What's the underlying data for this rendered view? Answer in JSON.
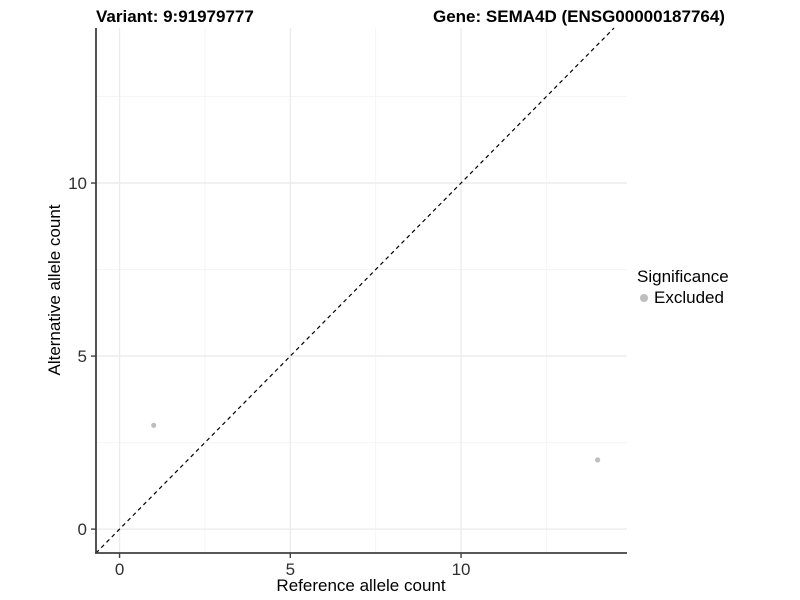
{
  "titles": {
    "variant": "Variant: 9:91979777",
    "gene": "Gene: SEMA4D (ENSG00000187764)"
  },
  "axes": {
    "x_title": "Reference allele count",
    "y_title": "Alternative allele count"
  },
  "legend": {
    "title": "Significance",
    "items": [
      {
        "label": "Excluded",
        "color": "#bebebe"
      }
    ]
  },
  "colors": {
    "point": "#bebebe",
    "grid_major": "#ebebeb",
    "grid_minor": "#f5f5f5",
    "axis_line": "#404040",
    "tick_text": "#303030",
    "identity_line": "#000000",
    "background": "#ffffff"
  },
  "chart_data": {
    "type": "scatter",
    "title": "Variant: 9:91979777 | Gene: SEMA4D (ENSG00000187764)",
    "xlabel": "Reference allele count",
    "ylabel": "Alternative allele count",
    "xlim": [
      -0.69,
      14.86
    ],
    "ylim": [
      -0.69,
      14.48
    ],
    "x_ticks": [
      0,
      5,
      10
    ],
    "y_ticks": [
      0,
      5,
      10
    ],
    "x_minor_ticks": [
      2.5,
      7.5,
      12.5
    ],
    "y_minor_ticks": [
      2.5,
      7.5,
      12.5
    ],
    "grid": true,
    "legend_position": "right",
    "series": [
      {
        "name": "Excluded",
        "color": "#bebebe",
        "points": [
          {
            "x": 1,
            "y": 3
          },
          {
            "x": 14,
            "y": 2
          }
        ]
      }
    ],
    "reference_line": {
      "kind": "identity",
      "equation": "y = x",
      "style": "dashed"
    }
  }
}
